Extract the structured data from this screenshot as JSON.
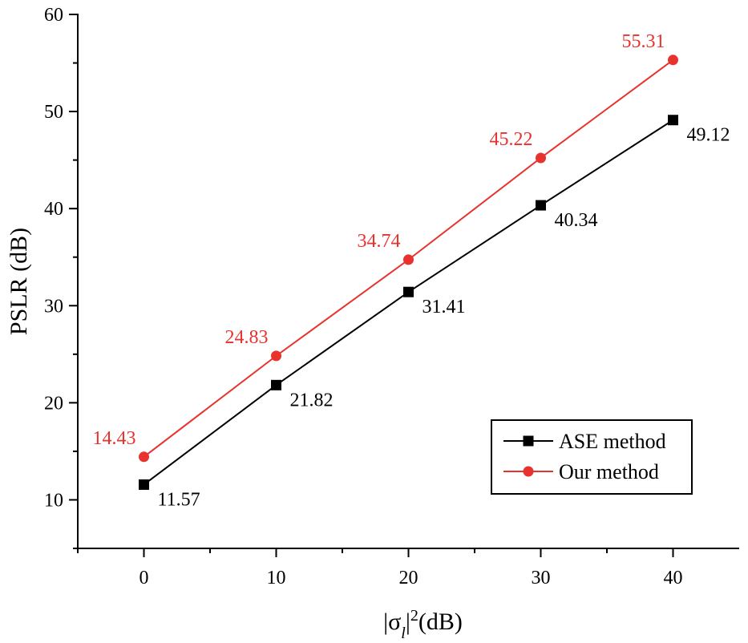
{
  "chart_data": {
    "type": "line",
    "title": "",
    "xlabel": "|σ_l|²(dB)",
    "ylabel": "PSLR (dB)",
    "x": [
      0,
      10,
      20,
      30,
      40
    ],
    "xlim": [
      -5,
      45
    ],
    "ylim": [
      5,
      60
    ],
    "xticks": [
      0,
      10,
      20,
      30,
      40
    ],
    "yticks": [
      10,
      20,
      30,
      40,
      50,
      60
    ],
    "grid": false,
    "legend_position": "bottom-right",
    "series": [
      {
        "name": "ASE method",
        "marker": "square",
        "color": "#000000",
        "values": [
          11.57,
          21.82,
          31.41,
          40.34,
          49.12
        ],
        "labels": [
          "11.57",
          "21.82",
          "31.41",
          "40.34",
          "49.12"
        ]
      },
      {
        "name": "Our method",
        "marker": "circle",
        "color": "#e8322e",
        "values": [
          14.43,
          24.83,
          34.74,
          45.22,
          55.31
        ],
        "labels": [
          "14.43",
          "24.83",
          "34.74",
          "45.22",
          "55.31"
        ]
      }
    ]
  }
}
